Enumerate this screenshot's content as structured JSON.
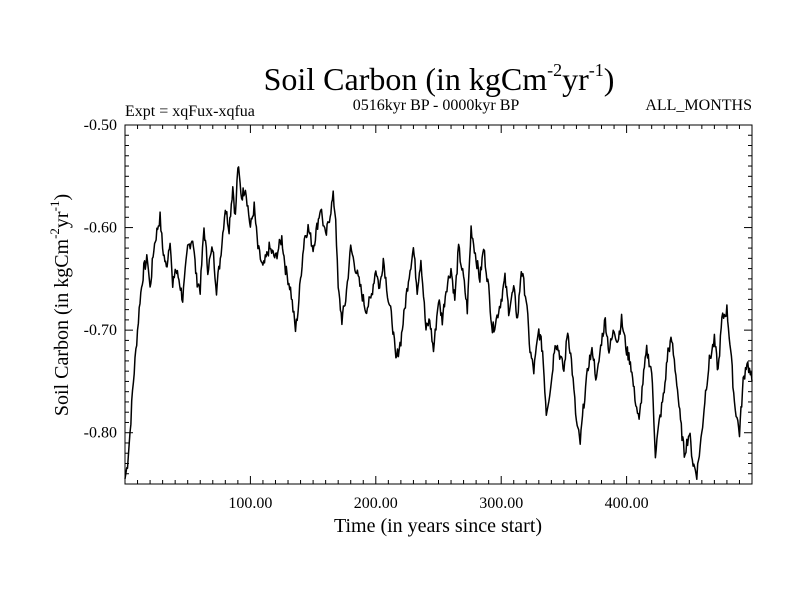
{
  "chart_data": {
    "type": "line",
    "title": "Soil Carbon (in kgCm-2yr-1)",
    "title_parts": {
      "main": "Soil Carbon (in kgCm",
      "exp1": "-2",
      "mid": "yr",
      "exp2": "-1",
      "end": ")"
    },
    "subtitle_left": "Expt = xqFux-xqfua",
    "subtitle_center": "0516kyr BP - 0000kyr BP",
    "subtitle_right": "ALL_MONTHS",
    "xlabel": "Time (in years since start)",
    "ylabel": "Soil Carbon (in kgCm-2yr-1)",
    "ylabel_parts": {
      "main": "Soil Carbon (in kgCm",
      "exp1": "-2",
      "mid": "yr",
      "exp2": "-1",
      "end": ")"
    },
    "xlim": [
      0,
      500
    ],
    "ylim": [
      -0.85,
      -0.5
    ],
    "x_ticks": [
      100,
      200,
      300,
      400
    ],
    "x_tick_labels": [
      "100.00",
      "200.00",
      "300.00",
      "400.00"
    ],
    "y_ticks": [
      -0.5,
      -0.6,
      -0.7,
      -0.8
    ],
    "y_tick_labels": [
      "-0.50",
      "-0.60",
      "-0.70",
      "-0.80"
    ],
    "color": "#000000",
    "series": [
      {
        "name": "Soil Carbon",
        "x": [
          0,
          2,
          4,
          6,
          8,
          10,
          12,
          15,
          18,
          20,
          23,
          26,
          28,
          30,
          33,
          36,
          38,
          40,
          43,
          46,
          50,
          54,
          57,
          60,
          63,
          66,
          70,
          73,
          76,
          80,
          83,
          86,
          88,
          90,
          93,
          96,
          100,
          103,
          106,
          110,
          115,
          120,
          125,
          128,
          132,
          136,
          138,
          140,
          143,
          146,
          150,
          153,
          156,
          160,
          163,
          166,
          168,
          170,
          173,
          176,
          180,
          184,
          188,
          192,
          196,
          200,
          203,
          206,
          210,
          213,
          216,
          220,
          223,
          226,
          230,
          233,
          236,
          240,
          243,
          246,
          250,
          253,
          256,
          260,
          263,
          266,
          270,
          273,
          276,
          280,
          283,
          286,
          290,
          293,
          296,
          300,
          303,
          306,
          310,
          313,
          316,
          320,
          323,
          326,
          330,
          333,
          336,
          340,
          343,
          346,
          350,
          353,
          356,
          360,
          363,
          366,
          370,
          373,
          376,
          380,
          383,
          386,
          390,
          393,
          396,
          400,
          403,
          406,
          410,
          413,
          416,
          420,
          423,
          426,
          430,
          433,
          436,
          440,
          443,
          446,
          450,
          453,
          456,
          460,
          463,
          466,
          470,
          473,
          476,
          480,
          483,
          486,
          490,
          493,
          496,
          500
        ],
        "values": [
          -0.845,
          -0.83,
          -0.8,
          -0.76,
          -0.73,
          -0.7,
          -0.67,
          -0.64,
          -0.63,
          -0.66,
          -0.62,
          -0.6,
          -0.59,
          -0.62,
          -0.64,
          -0.61,
          -0.66,
          -0.64,
          -0.65,
          -0.67,
          -0.62,
          -0.61,
          -0.65,
          -0.66,
          -0.6,
          -0.64,
          -0.62,
          -0.66,
          -0.63,
          -0.58,
          -0.6,
          -0.56,
          -0.59,
          -0.54,
          -0.57,
          -0.56,
          -0.6,
          -0.58,
          -0.62,
          -0.64,
          -0.62,
          -0.63,
          -0.61,
          -0.64,
          -0.66,
          -0.7,
          -0.68,
          -0.65,
          -0.61,
          -0.6,
          -0.62,
          -0.6,
          -0.58,
          -0.61,
          -0.59,
          -0.57,
          -0.59,
          -0.66,
          -0.69,
          -0.67,
          -0.62,
          -0.64,
          -0.66,
          -0.68,
          -0.67,
          -0.64,
          -0.66,
          -0.63,
          -0.67,
          -0.69,
          -0.73,
          -0.71,
          -0.68,
          -0.65,
          -0.62,
          -0.66,
          -0.63,
          -0.7,
          -0.69,
          -0.72,
          -0.67,
          -0.69,
          -0.66,
          -0.64,
          -0.67,
          -0.62,
          -0.65,
          -0.68,
          -0.6,
          -0.63,
          -0.65,
          -0.62,
          -0.66,
          -0.7,
          -0.69,
          -0.67,
          -0.65,
          -0.68,
          -0.66,
          -0.69,
          -0.64,
          -0.67,
          -0.72,
          -0.74,
          -0.7,
          -0.72,
          -0.78,
          -0.75,
          -0.71,
          -0.72,
          -0.74,
          -0.7,
          -0.73,
          -0.79,
          -0.81,
          -0.77,
          -0.73,
          -0.72,
          -0.75,
          -0.71,
          -0.69,
          -0.72,
          -0.7,
          -0.71,
          -0.69,
          -0.72,
          -0.73,
          -0.76,
          -0.79,
          -0.75,
          -0.72,
          -0.74,
          -0.82,
          -0.79,
          -0.76,
          -0.72,
          -0.71,
          -0.75,
          -0.79,
          -0.82,
          -0.8,
          -0.83,
          -0.84,
          -0.8,
          -0.76,
          -0.73,
          -0.71,
          -0.74,
          -0.69,
          -0.68,
          -0.72,
          -0.77,
          -0.8,
          -0.75,
          -0.73,
          -0.75
        ]
      }
    ]
  }
}
